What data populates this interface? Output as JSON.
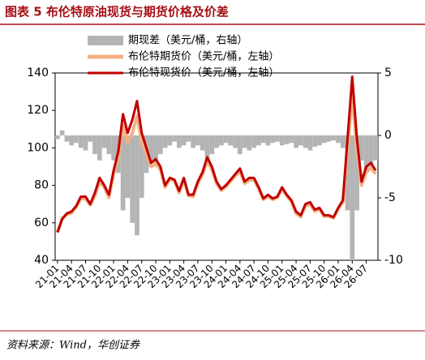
{
  "chart_data": {
    "type": "combo",
    "title": "图表 5 布伦特原油现货与期货价格及价差",
    "source": "资料来源：Wind，华创证券",
    "categories": [
      "21-01",
      null,
      null,
      "21-04",
      null,
      null,
      "21-07",
      null,
      null,
      "21-10",
      null,
      null,
      "22-01",
      null,
      null,
      "22-04",
      null,
      null,
      "22-07",
      null,
      null,
      "22-10",
      null,
      null,
      "23-01",
      null,
      null,
      "23-04",
      null,
      null,
      "23-07",
      null,
      null,
      "23-10",
      null,
      null,
      "24-01",
      null,
      null,
      "24-04",
      null,
      null,
      "24-07",
      null,
      null,
      "24-10",
      null,
      null,
      "25-01",
      null,
      null,
      "25-04",
      null,
      null,
      "25-07",
      null,
      null,
      "25-10",
      null,
      null,
      "26-01",
      null,
      null,
      "26-04",
      null,
      null,
      "26-07",
      null,
      null
    ],
    "ylim": [
      40,
      140
    ],
    "yticks": [
      40,
      60,
      80,
      100,
      120,
      140
    ],
    "y2lim": [
      -10,
      5
    ],
    "y2ticks": [
      -10,
      -5,
      0,
      5
    ],
    "series": [
      {
        "name": "期现差（美元/桶，右轴）",
        "type": "bar",
        "axis": "y2",
        "color": "#b4b4b4",
        "values": [
          -0.3,
          0.4,
          -0.5,
          -0.8,
          -0.6,
          -1.0,
          -1.2,
          -0.5,
          -1.5,
          -2.0,
          -1.0,
          -1.5,
          -2.0,
          -3.0,
          -6.0,
          -5.0,
          -7.0,
          -8.0,
          -5.0,
          -3.0,
          -2.0,
          -2.5,
          -1.5,
          -1.0,
          -0.8,
          -0.5,
          -1.0,
          -0.8,
          -0.5,
          -1.0,
          -0.8,
          -1.2,
          -2.0,
          -1.5,
          -1.0,
          -0.8,
          -0.6,
          -0.8,
          -1.0,
          -1.5,
          -1.0,
          -1.2,
          -1.0,
          -0.8,
          -0.6,
          -0.8,
          -0.6,
          -0.5,
          -0.8,
          -0.7,
          -0.6,
          -1.0,
          -0.8,
          -1.0,
          -1.2,
          -0.9,
          -0.8,
          -0.6,
          -0.5,
          -0.4,
          -0.6,
          -1.0,
          -6.0,
          -10.0,
          -6.0,
          -2.0,
          -3.0,
          -2.5,
          -2.0
        ]
      },
      {
        "name": "布伦特期货价（美元/桶，左轴）",
        "type": "line",
        "color": "#f4b183",
        "values": [
          54.7,
          62.4,
          64.5,
          65.2,
          68.4,
          73,
          72.8,
          69.5,
          74.5,
          82,
          79,
          73.5,
          86,
          95,
          112,
          103,
          108,
          117,
          103,
          97,
          90,
          91.5,
          88.5,
          79,
          83.2,
          82.5,
          76,
          83.2,
          74.5,
          74,
          81.2,
          85.8,
          93,
          88.5,
          81,
          77.2,
          79.4,
          82.2,
          85,
          87.5,
          81,
          82.8,
          83,
          78.2,
          72.4,
          74.2,
          72.4,
          73.5,
          78.2,
          74.3,
          71.4,
          65,
          63.2,
          69,
          69.8,
          66.1,
          67.2,
          63.4,
          63.5,
          62.6,
          67.4,
          71,
          99,
          128,
          99,
          80,
          87,
          89.5,
          86
        ]
      },
      {
        "name": "布伦特现货价（美元/桶，左轴）",
        "type": "line",
        "color": "#c00000",
        "values": [
          55,
          62,
          65,
          66,
          69,
          74,
          74,
          70,
          76,
          84,
          80,
          75,
          88,
          98,
          118,
          108,
          115,
          125,
          108,
          100,
          92,
          94,
          90,
          80,
          84,
          83,
          77,
          84,
          75,
          75,
          82,
          87,
          95,
          90,
          82,
          78,
          80,
          83,
          86,
          89,
          82,
          84,
          84,
          79,
          73,
          75,
          73,
          74,
          79,
          75,
          72,
          66,
          64,
          70,
          71,
          67,
          68,
          64,
          64,
          63,
          68,
          72,
          105,
          138,
          105,
          82,
          90,
          92,
          88
        ]
      }
    ]
  }
}
